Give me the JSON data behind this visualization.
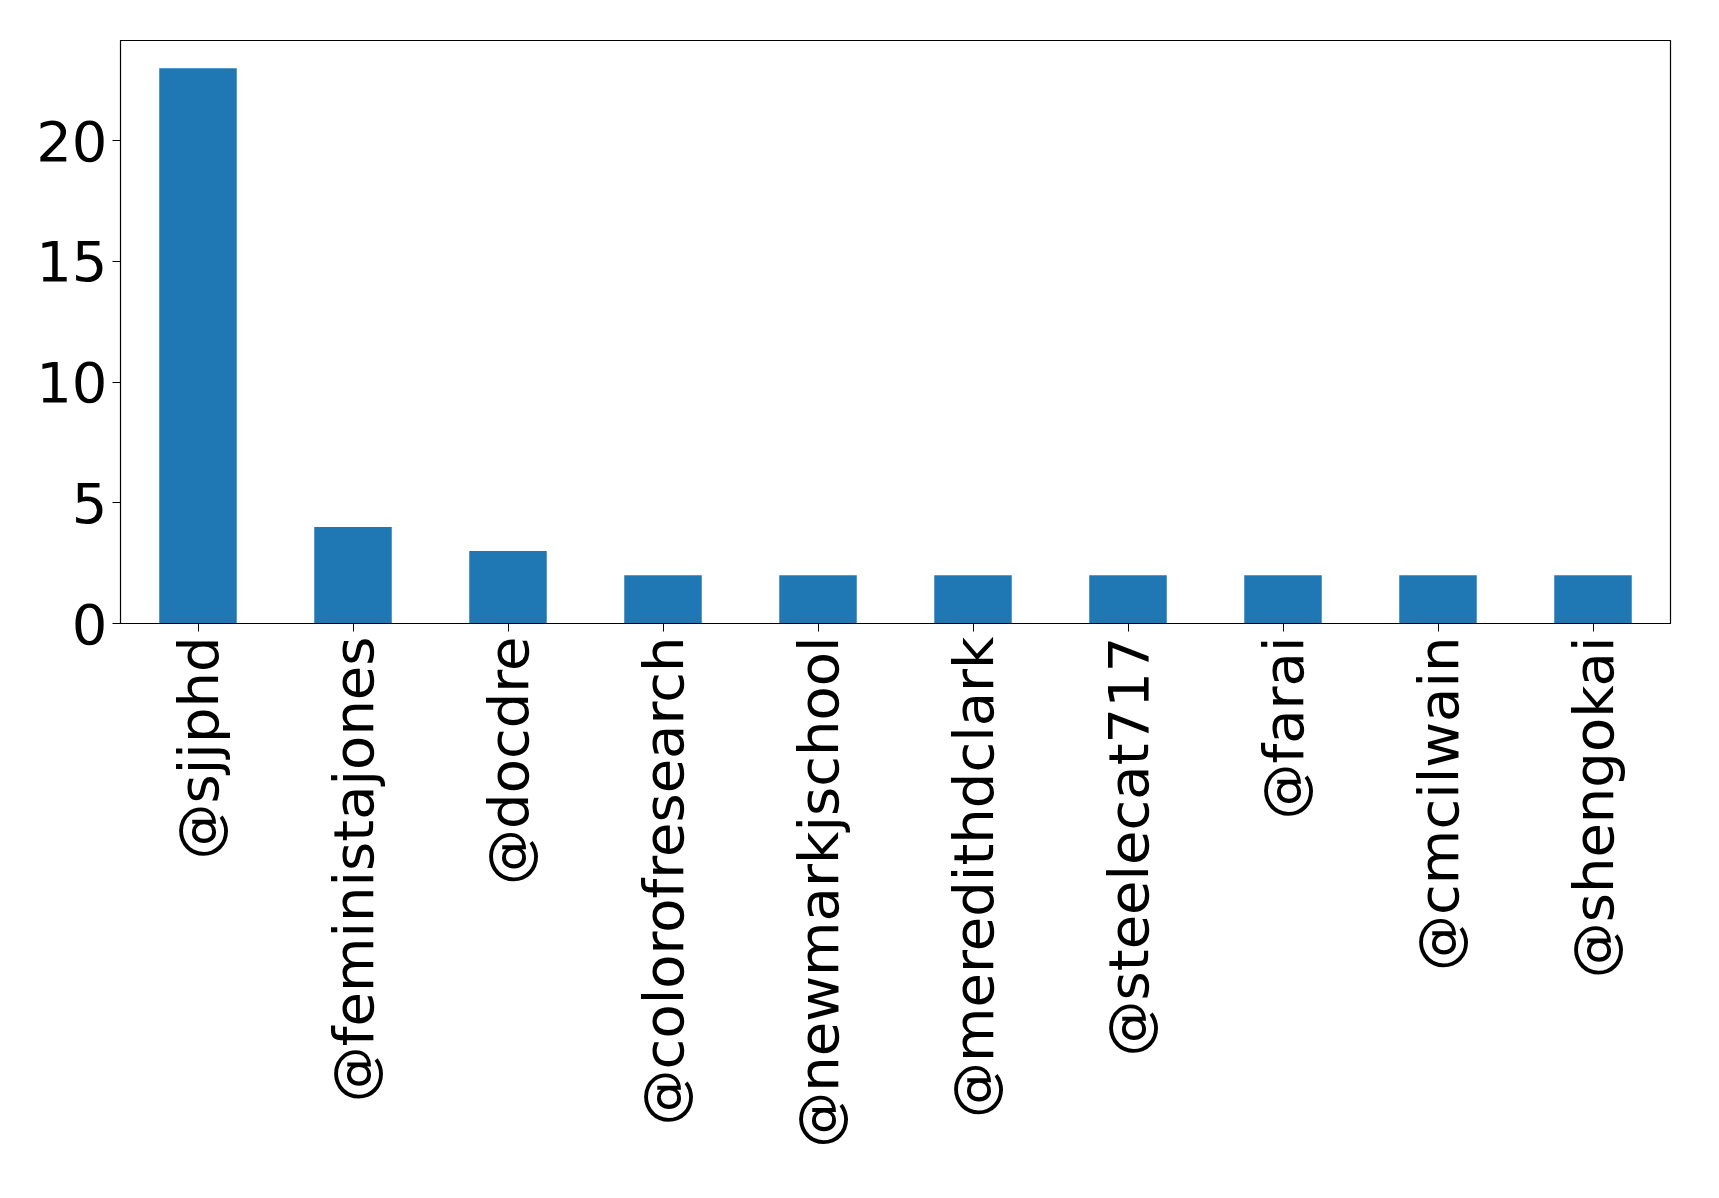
{
  "chart_data": {
    "type": "bar",
    "categories": [
      "@sjjphd",
      "@feministajones",
      "@docdre",
      "@colorofresearch",
      "@newmarkjschool",
      "@meredithdclark",
      "@steelecat717",
      "@farai",
      "@cmcilwain",
      "@shengokai"
    ],
    "values": [
      23,
      4,
      3,
      2,
      2,
      2,
      2,
      2,
      2,
      2
    ],
    "color": "#1f77b4",
    "ylim": [
      0,
      24.15
    ],
    "yticks": [
      0,
      5,
      10,
      15,
      20
    ],
    "grid": false
  }
}
